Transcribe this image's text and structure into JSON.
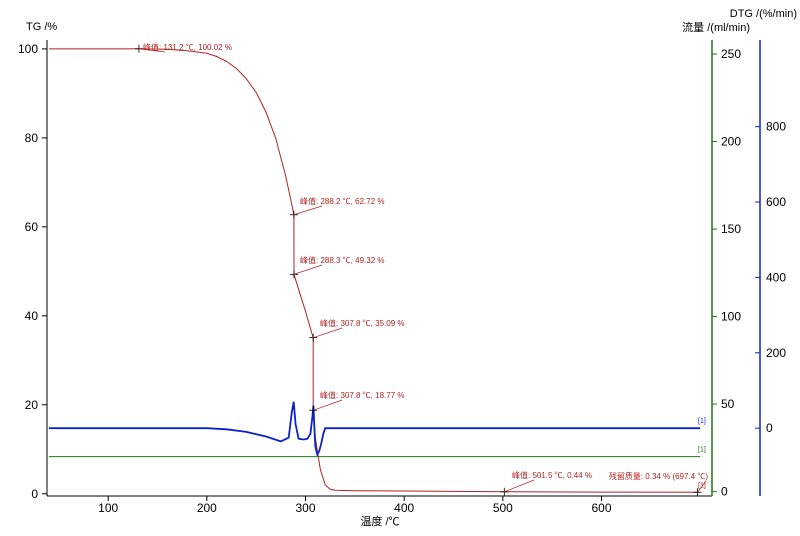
{
  "colors": {
    "tg": "#b22222",
    "dtg": "#0a22c8",
    "flow": "#1a7a1a",
    "axis_left": "#000000"
  },
  "chart_data": {
    "type": "line",
    "xlabel": "温度 /℃",
    "x_ticks": [
      100,
      200,
      300,
      400,
      500,
      600
    ],
    "xlim": [
      38,
      712
    ],
    "axes": {
      "tg": {
        "label": "TG /%",
        "ticks": [
          0,
          20,
          40,
          60,
          80,
          100
        ],
        "ylim": [
          -0.5,
          102
        ]
      },
      "flow": {
        "label": "流量 /(ml/min)",
        "ticks": [
          0,
          50,
          100,
          150,
          200,
          250
        ],
        "ylim": [
          -2.5,
          258
        ]
      },
      "dtg": {
        "label": "DTG /(%/min)",
        "ticks": [
          0,
          200,
          400,
          600,
          800
        ],
        "ylim": [
          -180,
          1030
        ]
      }
    },
    "series": [
      {
        "key": "tg",
        "x": [
          40,
          100,
          131.2,
          160,
          180,
          200,
          210,
          220,
          230,
          240,
          250,
          260,
          270,
          280,
          285,
          288.2,
          288.3,
          295,
          300,
          305,
          307.8,
          307.8,
          310,
          315,
          320,
          325,
          330,
          350,
          400,
          500,
          501.5,
          600,
          697.4
        ],
        "y": [
          100,
          100,
          100.02,
          99.9,
          99.6,
          99.0,
          98.3,
          97.2,
          95.6,
          93.3,
          90.2,
          85.8,
          79.8,
          71.3,
          66.2,
          62.72,
          49.32,
          44.5,
          41.0,
          37.2,
          35.09,
          18.77,
          12.5,
          5.5,
          2.0,
          1.0,
          0.8,
          0.7,
          0.62,
          0.44,
          0.44,
          0.38,
          0.34
        ]
      },
      {
        "key": "dtg",
        "x": [
          40,
          200,
          220,
          240,
          260,
          275,
          283,
          286,
          288,
          290,
          293,
          298,
          302,
          305,
          307,
          308,
          309,
          310,
          312,
          314,
          316,
          318,
          320,
          330,
          700
        ],
        "y": [
          0,
          0,
          -3,
          -10,
          -22,
          -35,
          -25,
          40,
          70,
          10,
          -28,
          -30,
          -28,
          -15,
          30,
          60,
          0,
          -50,
          -70,
          -60,
          -40,
          -15,
          0,
          0,
          0
        ]
      },
      {
        "key": "flow",
        "x": [
          40,
          700
        ],
        "y": [
          20,
          20
        ]
      }
    ],
    "annotations": [
      {
        "text": "峰值: 131.2 ℃, 100.02 %",
        "x": 131.2,
        "y": 100.02
      },
      {
        "text": "峰值: 288.2 ℃, 62.72 %",
        "x": 288.2,
        "y": 62.72
      },
      {
        "text": "峰值: 288.3 ℃, 49.32 %",
        "x": 288.3,
        "y": 49.32
      },
      {
        "text": "峰值: 307.8 ℃, 35.09 %",
        "x": 307.8,
        "y": 35.09
      },
      {
        "text": "峰值: 307.8 ℃, 18.77 %",
        "x": 307.8,
        "y": 18.77
      },
      {
        "text": "峰值: 501.5 ℃, 0.44 %",
        "x": 501.5,
        "y": 0.44
      },
      {
        "text": "残留质量: 0.34 % (697.4 ℃)",
        "x": 697.4,
        "y": 0.34
      }
    ],
    "series_markers": [
      "[1]",
      "[1]",
      "[1]"
    ]
  }
}
